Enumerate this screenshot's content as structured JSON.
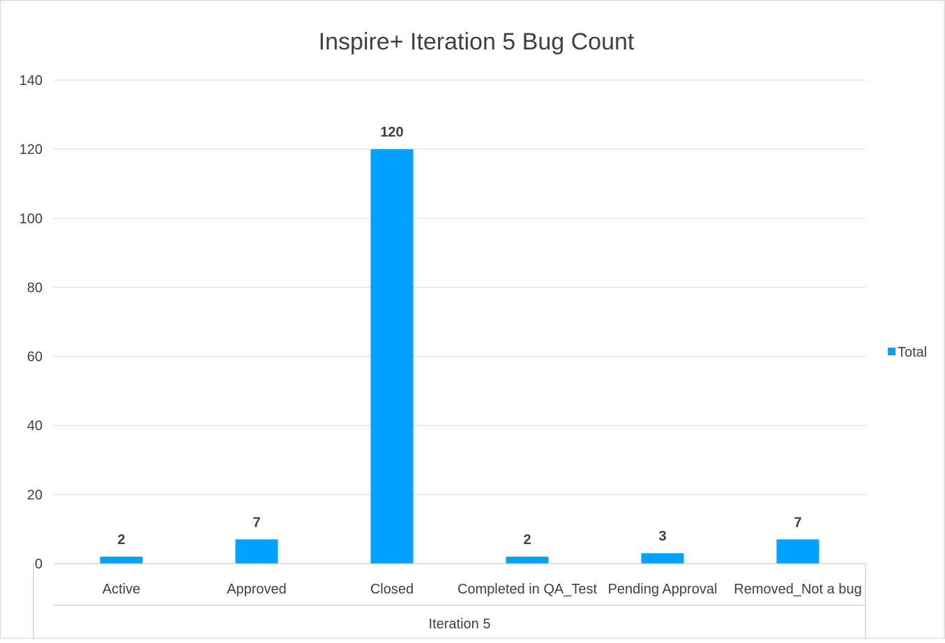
{
  "chart_data": {
    "type": "bar",
    "title": "Inspire+ Iteration 5 Bug Count",
    "categories": [
      "Active",
      "Approved",
      "Closed",
      "Completed in QA_Test",
      "Pending Approval",
      "Removed_Not a bug"
    ],
    "group_label": "Iteration 5",
    "series": [
      {
        "name": "Total",
        "values": [
          2,
          7,
          120,
          2,
          3,
          7
        ],
        "color": "#00A2FF"
      }
    ],
    "ylim": [
      0,
      140
    ],
    "yticks": [
      0,
      20,
      40,
      60,
      80,
      100,
      120,
      140
    ],
    "grid": true,
    "legend_position": "right",
    "data_labels": true
  }
}
